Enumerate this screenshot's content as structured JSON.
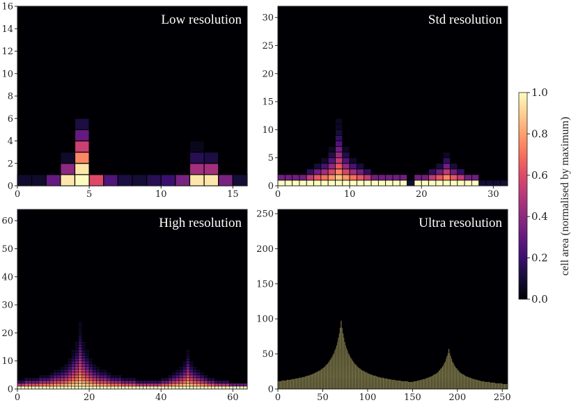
{
  "chart_data": {
    "type": "heatmap",
    "description_note": "Four panels of a 2D cell grid coloured by cell area (normalised by maximum); columns of cells stack into two peaks.",
    "panels": [
      {
        "title": "Low resolution",
        "grid": 16,
        "xlim": [
          0,
          16
        ],
        "ylim": [
          0,
          16
        ],
        "xticks": [
          0,
          5,
          10,
          15
        ],
        "yticks": [
          0,
          2,
          4,
          6,
          8,
          10,
          12,
          14,
          16
        ],
        "peaks": [
          {
            "center": 4.5,
            "height": 6,
            "width": 1.2
          },
          {
            "center": 12,
            "height": 4,
            "width": 1.2
          }
        ],
        "columns": [
          [
            0.08
          ],
          [
            0.08
          ],
          [
            0.3
          ],
          [
            0.95,
            0.4,
            0.08
          ],
          [
            1.0,
            0.95,
            0.75,
            0.55,
            0.3,
            0.12
          ],
          [
            0.6
          ],
          [
            0.25
          ],
          [
            0.12
          ],
          [
            0.1
          ],
          [
            0.15
          ],
          [
            0.2
          ],
          [
            0.35
          ],
          [
            0.95,
            0.45,
            0.15,
            0.05
          ],
          [
            0.95,
            0.45,
            0.12
          ],
          [
            0.35
          ],
          [
            0.1
          ]
        ]
      },
      {
        "title": "Std resolution",
        "grid": 32,
        "xlim": [
          0,
          32
        ],
        "ylim": [
          0,
          32
        ],
        "xticks": [
          0,
          10,
          20,
          30
        ],
        "yticks": [
          0,
          5,
          10,
          15,
          20,
          25,
          30
        ],
        "peaks": [
          {
            "center": 8.5,
            "height": 12,
            "width": 1.3
          },
          {
            "center": 23.7,
            "height": 7,
            "width": 1.3
          }
        ]
      },
      {
        "title": "High resolution",
        "grid": 64,
        "xlim": [
          0,
          64
        ],
        "ylim": [
          0,
          64
        ],
        "xticks": [
          0,
          20,
          40,
          60
        ],
        "yticks": [
          0,
          10,
          20,
          30,
          40,
          50,
          60
        ],
        "peaks": [
          {
            "center": 17.5,
            "height": 24,
            "width": 2.6
          },
          {
            "center": 47.5,
            "height": 14,
            "width": 2.6
          }
        ]
      },
      {
        "title": "Ultra resolution",
        "grid": 256,
        "xlim": [
          0,
          256
        ],
        "ylim": [
          0,
          256
        ],
        "xticks": [
          0,
          50,
          100,
          150,
          200,
          250
        ],
        "yticks": [
          0,
          50,
          100,
          150,
          200,
          250
        ],
        "peaks": [
          {
            "center": 70.5,
            "height": 97,
            "width": 9
          },
          {
            "center": 190.5,
            "height": 57,
            "width": 9
          }
        ]
      }
    ],
    "colorbar": {
      "label": "cell area (normalised by maximum)",
      "range": [
        0.0,
        1.0
      ],
      "ticks": [
        "0.0",
        "0.2",
        "0.4",
        "0.6",
        "0.8",
        "1.0"
      ],
      "colormap": "magma"
    },
    "colors": {
      "background": "#000004",
      "magma": [
        "#000004",
        "#140e36",
        "#3b0f70",
        "#641a80",
        "#8c2981",
        "#b73779",
        "#de4968",
        "#f7705c",
        "#fe9f6d",
        "#fecf92",
        "#fcfdbf"
      ]
    }
  }
}
